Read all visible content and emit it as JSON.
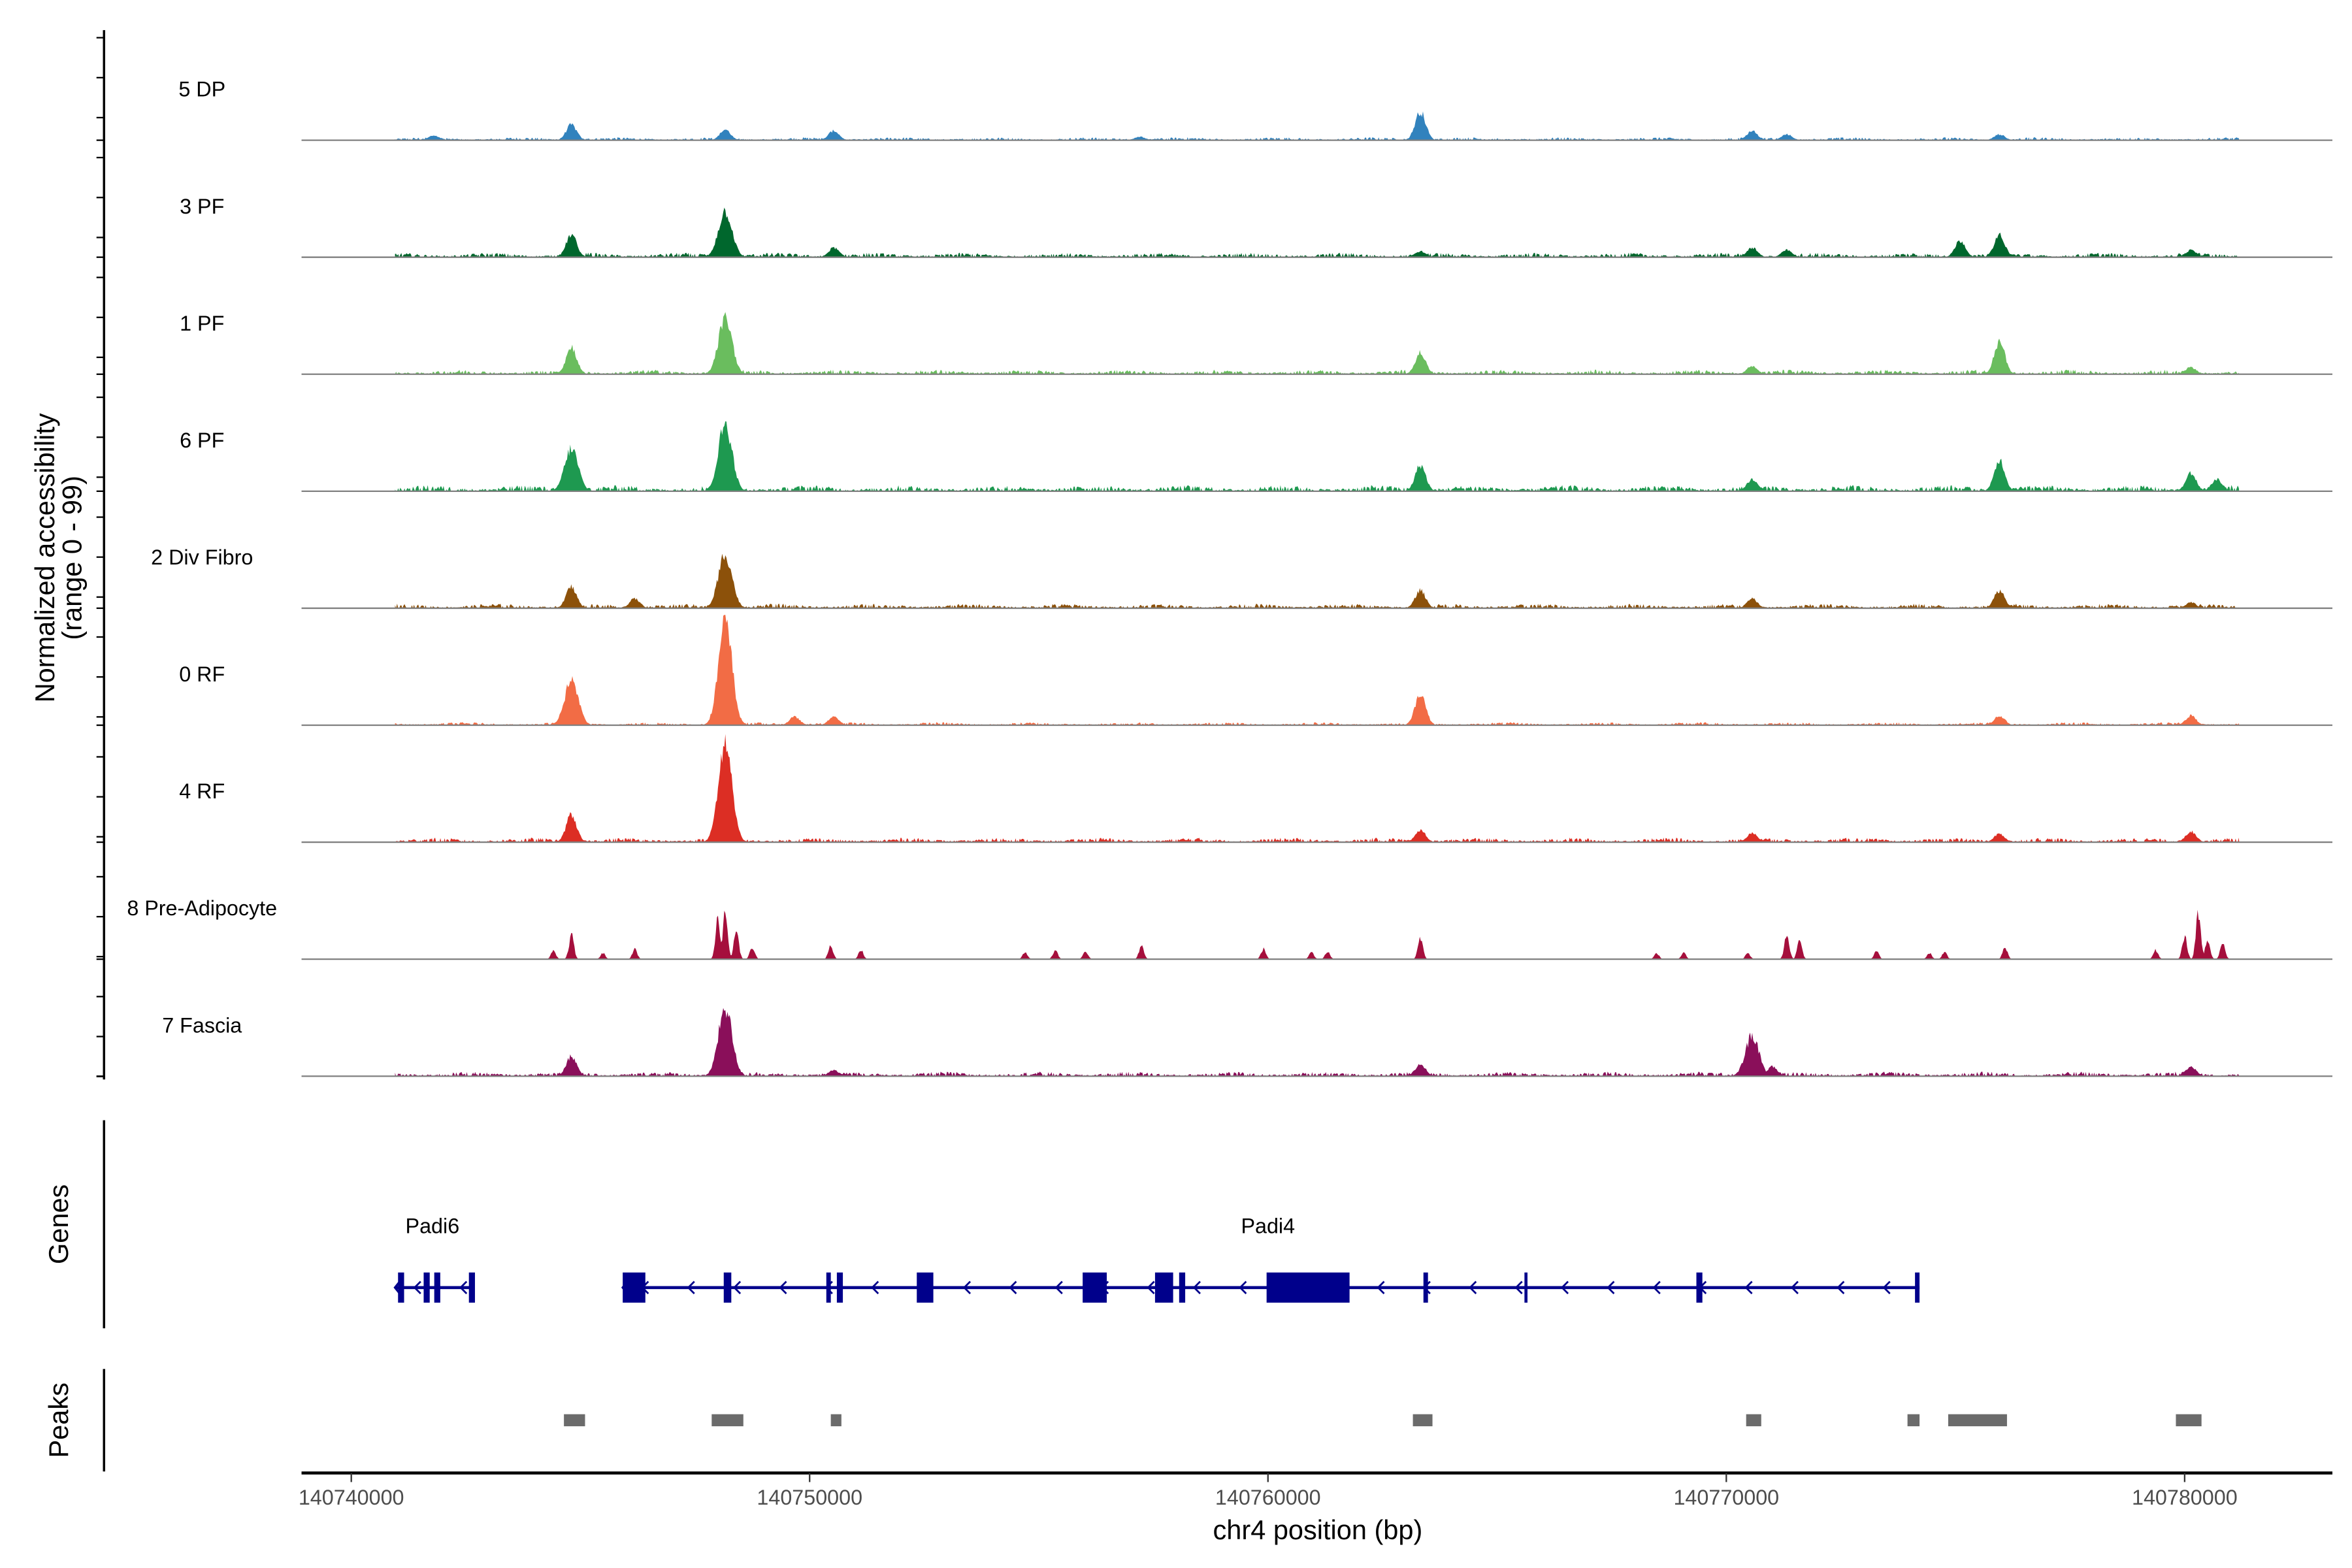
{
  "chart_data": {
    "type": "area",
    "title": "",
    "ylabel": "Normalized accessibility",
    "ylabel_range": "(range 0 - 99)",
    "ylim": [
      0,
      99
    ],
    "xlabel": "chr4 position (bp)",
    "xlim": [
      140738900,
      140783230
    ],
    "xticks": [
      140740000,
      140750000,
      140760000,
      140770000,
      140780000
    ],
    "xtick_labels": [
      "140740000",
      "140750000",
      "140760000",
      "140770000",
      "140780000"
    ],
    "signal_range": [
      140740954,
      140781191
    ],
    "tracks": [
      {
        "name": "5 DP",
        "color": "#3182bd",
        "noise": 2,
        "peaks": [
          [
            140744803,
            13
          ],
          [
            140748159,
            9
          ],
          [
            140750528,
            8
          ],
          [
            140763326,
            24
          ],
          [
            140770564,
            8
          ],
          [
            140771321,
            5
          ],
          [
            140775960,
            5
          ],
          [
            140741800,
            4
          ],
          [
            140757200,
            3
          ]
        ]
      },
      {
        "name": "3 PF",
        "color": "#00672d",
        "noise": 3,
        "peaks": [
          [
            140744803,
            19
          ],
          [
            140748159,
            39
          ],
          [
            140750528,
            8
          ],
          [
            140763326,
            5
          ],
          [
            140770564,
            8
          ],
          [
            140771321,
            6
          ],
          [
            140775104,
            14
          ],
          [
            140775960,
            19
          ],
          [
            140780138,
            6
          ]
        ]
      },
      {
        "name": "1 PF",
        "color": "#6abd5e",
        "noise": 3,
        "peaks": [
          [
            140744803,
            23
          ],
          [
            140748159,
            47
          ],
          [
            140763326,
            18
          ],
          [
            140770564,
            7
          ],
          [
            140775960,
            28
          ],
          [
            140780138,
            6
          ]
        ]
      },
      {
        "name": "6 PF",
        "color": "#1e9950",
        "noise": 4,
        "peaks": [
          [
            140744803,
            36
          ],
          [
            140748159,
            57
          ],
          [
            140763326,
            22
          ],
          [
            140770564,
            10
          ],
          [
            140775960,
            27
          ],
          [
            140780138,
            15
          ],
          [
            140780700,
            10
          ]
        ]
      },
      {
        "name": "2 Div Fibro",
        "color": "#8c510a",
        "noise": 3,
        "peaks": [
          [
            140744803,
            18
          ],
          [
            140746185,
            8
          ],
          [
            140748159,
            46
          ],
          [
            140763326,
            15
          ],
          [
            140770564,
            8
          ],
          [
            140775960,
            15
          ],
          [
            140780138,
            5
          ]
        ]
      },
      {
        "name": "0 RF",
        "color": "#f26c45",
        "noise": 2,
        "peaks": [
          [
            140744803,
            38
          ],
          [
            140748159,
            86
          ],
          [
            140749673,
            7
          ],
          [
            140750528,
            7
          ],
          [
            140763326,
            27
          ],
          [
            140775960,
            8
          ],
          [
            140780138,
            8
          ]
        ]
      },
      {
        "name": "4 RF",
        "color": "#dc2e24",
        "noise": 3,
        "peaks": [
          [
            140744803,
            23
          ],
          [
            140748159,
            83
          ],
          [
            140763326,
            10
          ],
          [
            140770564,
            8
          ],
          [
            140775960,
            7
          ],
          [
            140780138,
            9
          ]
        ]
      },
      {
        "name": "8 Pre-Adipocyte",
        "color": "#a50f3c",
        "noise": 0,
        "peaks": [
          [
            140744410,
            8
          ],
          [
            140744803,
            24
          ],
          [
            140745490,
            6
          ],
          [
            140746185,
            10
          ],
          [
            140748000,
            40
          ],
          [
            140748159,
            45
          ],
          [
            140748400,
            28
          ],
          [
            140748750,
            12
          ],
          [
            140750460,
            13
          ],
          [
            140751120,
            9
          ],
          [
            140754700,
            7
          ],
          [
            140755360,
            9
          ],
          [
            140756020,
            8
          ],
          [
            140757240,
            13
          ],
          [
            140759900,
            10
          ],
          [
            140760950,
            7
          ],
          [
            140761300,
            8
          ],
          [
            140763326,
            22
          ],
          [
            140768480,
            6
          ],
          [
            140769070,
            6
          ],
          [
            140770470,
            6
          ],
          [
            140771321,
            24
          ],
          [
            140771600,
            18
          ],
          [
            140773280,
            8
          ],
          [
            140774430,
            6
          ],
          [
            140774760,
            7
          ],
          [
            140776080,
            12
          ],
          [
            140779370,
            9
          ],
          [
            140780000,
            22
          ],
          [
            140780300,
            45
          ],
          [
            140780500,
            18
          ],
          [
            140780830,
            15
          ]
        ]
      },
      {
        "name": "7 Fascia",
        "color": "#8a0f5a",
        "noise": 3,
        "peaks": [
          [
            140744803,
            17
          ],
          [
            140748159,
            58
          ],
          [
            140750528,
            5
          ],
          [
            140763326,
            10
          ],
          [
            140770564,
            34
          ],
          [
            140771000,
            8
          ],
          [
            140780138,
            8
          ]
        ]
      }
    ],
    "genes": [
      {
        "name": "Padi6",
        "start": 140740954,
        "end": 140742665,
        "label_pos": 140741770,
        "exons": [
          [
            140741020,
            140741152
          ],
          [
            140741579,
            140741711
          ],
          [
            140741810,
            140741941
          ],
          [
            140742566,
            140742698
          ]
        ]
      },
      {
        "name": "Padi4",
        "start": 140745922,
        "end": 140774216,
        "label_pos": 140760000,
        "exons": [
          [
            140745922,
            140746416
          ],
          [
            140748126,
            140748291
          ],
          [
            140750364,
            140750462
          ],
          [
            140750594,
            140750725
          ],
          [
            140752338,
            140752699
          ],
          [
            140755957,
            140756483
          ],
          [
            140757536,
            140757931
          ],
          [
            140758062,
            140758194
          ],
          [
            140759970,
            140761780
          ],
          [
            140763392,
            140763491
          ],
          [
            140765596,
            140765662
          ],
          [
            140769347,
            140769478
          ],
          [
            140774117,
            140774216
          ]
        ]
      }
    ],
    "peaks": [
      [
        140744639,
        140745100
      ],
      [
        140747863,
        140748554
      ],
      [
        140750462,
        140750693
      ],
      [
        140763162,
        140763589
      ],
      [
        140770433,
        140770762
      ],
      [
        140773953,
        140774216
      ],
      [
        140774841,
        140776124
      ],
      [
        140779809,
        140780368
      ]
    ],
    "gene_color": "#00008b",
    "peak_color": "#6b6b6b"
  },
  "panels": {
    "genes_label": "Genes",
    "peaks_label": "Peaks"
  }
}
